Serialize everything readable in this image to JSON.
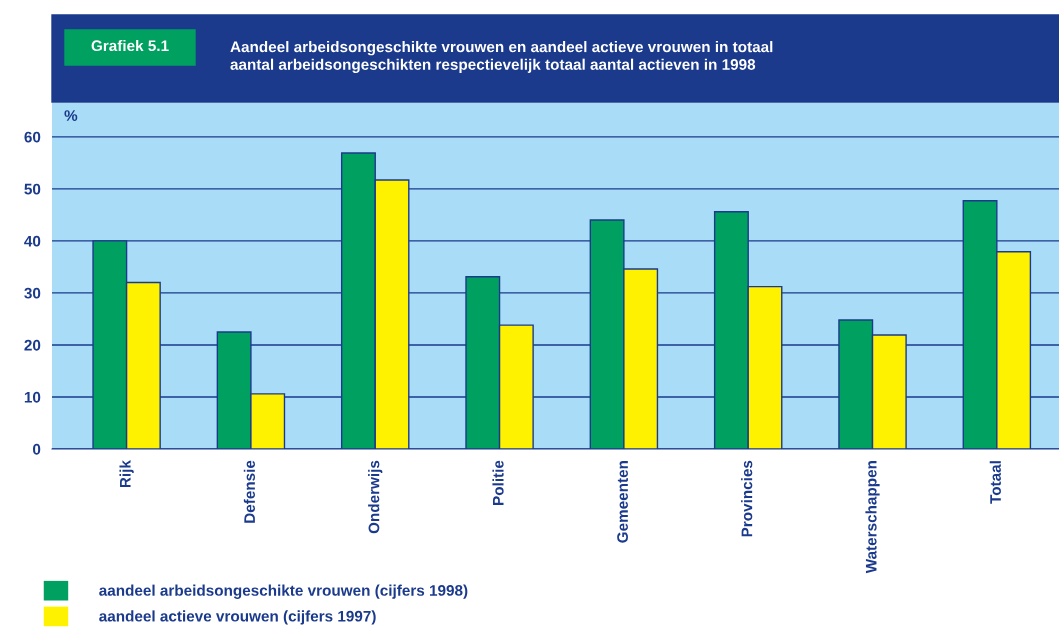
{
  "chart_data": {
    "type": "bar",
    "title": "Aandeel arbeidsongeschikte vrouwen en aandeel actieve vrouwen in totaal\naantal arbeidsongeschikten respectievelijk totaal aantal actieven in 1998",
    "annotations": [
      "Grafiek 5.1"
    ],
    "ylabel": "%",
    "categories": [
      "Rijk",
      "Defensie",
      "Onderwijs",
      "Politie",
      "Gemeenten",
      "Provincies",
      "Waterschappen",
      "Totaal"
    ],
    "series": [
      {
        "name": "aandeel arbeidsongeschikte vrouwen (cijfers 1998)",
        "color": "#00a160",
        "values": [
          40.0,
          22.5,
          56.9,
          33.1,
          44.0,
          45.6,
          24.8,
          47.7
        ]
      },
      {
        "name": "aandeel actieve vrouwen (cijfers 1997)",
        "color": "#fff200",
        "values": [
          32.0,
          10.6,
          51.7,
          23.8,
          34.6,
          31.2,
          21.9,
          37.9
        ]
      }
    ],
    "ylim": [
      0,
      66.5
    ],
    "yticks": [
      0,
      10,
      20,
      30,
      40,
      50,
      60
    ],
    "grid": "y",
    "legend": "bottom left"
  }
}
